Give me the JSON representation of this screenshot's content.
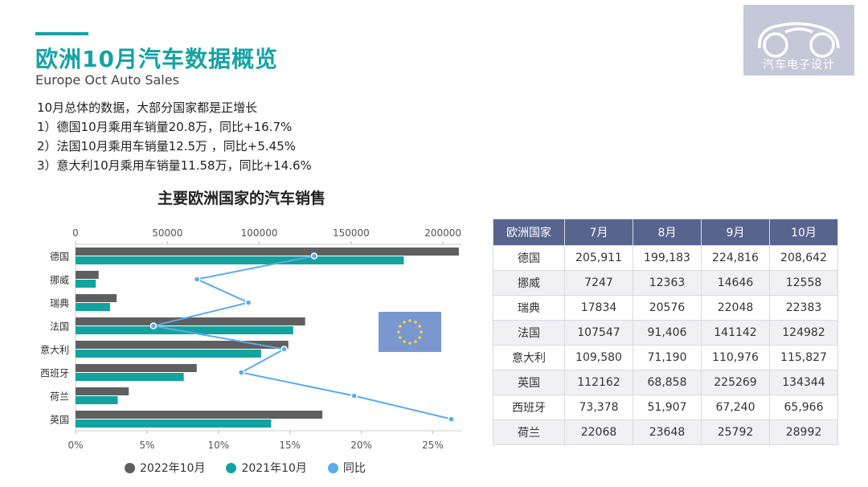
{
  "header": {
    "title": "欧洲10月汽车数据概览",
    "subtitle": "Europe  Oct Auto Sales",
    "lines": [
      "10月总体的数据，大部分国家都是正增长",
      "1）德国10月乘用车销量20.8万，同比+16.7%",
      "2）法国10月乘用车销量12.5万 ，同比+5.45%",
      "3）意大利10月乘用车销量11.58万，同比+14.6%"
    ]
  },
  "logo": {
    "text": "汽车电子设计"
  },
  "colors": {
    "accent": "#16a2a5",
    "bar2022": "#5f5f5f",
    "bar2021": "#12a39f",
    "yoy": "#5aabed",
    "table_header": "#57658e",
    "flag": "#7b97cf",
    "flag_stars": "#f3d43f"
  },
  "chart_data": {
    "type": "bar",
    "title": "主要欧洲国家的汽车销售",
    "orientation": "horizontal",
    "categories": [
      "德国",
      "挪威",
      "瑞典",
      "法国",
      "意大利",
      "西班牙",
      "荷兰",
      "英国"
    ],
    "top_axis": {
      "ticks": [
        "0",
        "50000",
        "100000",
        "150000",
        "200000"
      ],
      "range": [
        0,
        210000
      ]
    },
    "bottom_axis": {
      "ticks": [
        "0%",
        "5%",
        "10%",
        "15%",
        "20%",
        "25%"
      ],
      "range": [
        0,
        0.27
      ]
    },
    "series": [
      {
        "name": "2022年10月",
        "values": [
          208642,
          12558,
          22383,
          124982,
          115827,
          65966,
          28992,
          134344
        ]
      },
      {
        "name": "2021年10月",
        "values": [
          178700,
          11000,
          18800,
          118500,
          101000,
          58900,
          23000,
          106500
        ]
      },
      {
        "name": "同比",
        "values": [
          0.167,
          0.085,
          0.121,
          0.0545,
          0.146,
          0.116,
          0.195,
          0.263
        ]
      }
    ],
    "legend": [
      "2022年10月",
      "2021年10月",
      "同比"
    ],
    "legend_position": "bottom"
  },
  "table": {
    "headers": [
      "欧洲国家",
      "7月",
      "8月",
      "9月",
      "10月"
    ],
    "rows": [
      [
        "德国",
        "205,911",
        "199,183",
        "224,816",
        "208,642"
      ],
      [
        "挪威",
        "7247",
        "12363",
        "14646",
        "12558"
      ],
      [
        "瑞典",
        "17834",
        "20576",
        "22048",
        "22383"
      ],
      [
        "法国",
        "107547",
        "91,406",
        "141142",
        "124982"
      ],
      [
        "意大利",
        "109,580",
        "71,190",
        "110,976",
        "115,827"
      ],
      [
        "英国",
        "112162",
        "68,858",
        "225269",
        "134344"
      ],
      [
        "西班牙",
        "73,378",
        "51,907",
        "67,240",
        "65,966"
      ],
      [
        "荷兰",
        "22068",
        "23648",
        "25792",
        "28992"
      ]
    ]
  }
}
